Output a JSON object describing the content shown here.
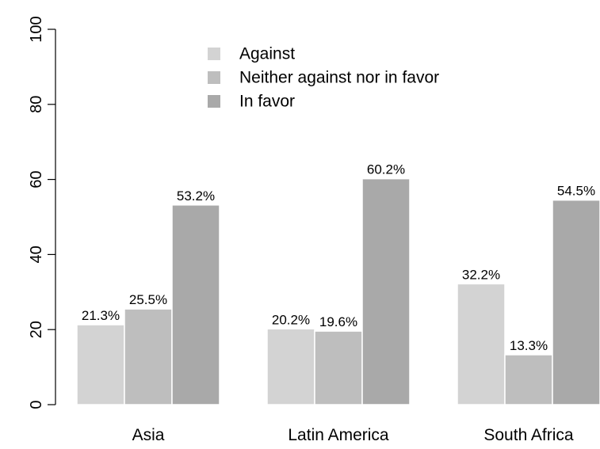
{
  "chart_data": {
    "type": "bar",
    "categories": [
      "Asia",
      "Latin America",
      "South Africa"
    ],
    "series": [
      {
        "name": "Against",
        "values": [
          21.3,
          20.2,
          32.2
        ],
        "labels": [
          "21.3%",
          "20.2%",
          "32.2%"
        ],
        "color": "#d3d3d3"
      },
      {
        "name": "Neither against nor in favor",
        "values": [
          25.5,
          19.6,
          13.3
        ],
        "labels": [
          "25.5%",
          "19.6%",
          "13.3%"
        ],
        "color": "#bebebe"
      },
      {
        "name": "In favor",
        "values": [
          53.2,
          60.2,
          54.5
        ],
        "labels": [
          "53.2%",
          "60.2%",
          "54.5%"
        ],
        "color": "#a9a9a9"
      }
    ],
    "ylim": [
      0,
      100
    ],
    "yticks": [
      "0",
      "20",
      "40",
      "60",
      "80",
      "100"
    ],
    "grid": false,
    "legend_position": "top-center",
    "title": "",
    "xlabel": "",
    "ylabel": ""
  }
}
